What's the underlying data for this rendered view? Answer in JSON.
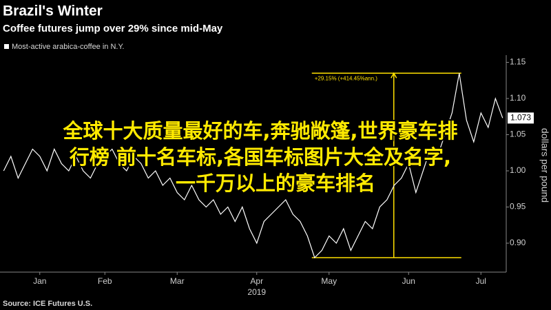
{
  "chart_data": {
    "type": "line",
    "title": "Brazil's Winter",
    "subtitle": "Coffee futures jump over 29% since mid-May",
    "source": "Source: ICE Futures U.S.",
    "y_label": "dollars per pound",
    "x_year": "2019",
    "categories": [
      null,
      null,
      null,
      null,
      null,
      "Jan",
      null,
      null,
      null,
      null,
      null,
      null,
      null,
      null,
      "Feb",
      null,
      null,
      null,
      null,
      null,
      null,
      null,
      null,
      null,
      "Mar",
      null,
      null,
      null,
      null,
      null,
      null,
      null,
      null,
      null,
      null,
      "Apr",
      null,
      null,
      null,
      null,
      null,
      null,
      null,
      null,
      null,
      "May",
      null,
      null,
      null,
      null,
      null,
      null,
      null,
      null,
      null,
      null,
      "Jun",
      null,
      null,
      null,
      null,
      null,
      null,
      null,
      null,
      null,
      "Jul",
      null,
      null,
      null
    ],
    "series": [
      {
        "name": "Most-active arabica-coffee in N.Y.",
        "color": "#ffffff",
        "values": [
          1.0,
          1.02,
          0.99,
          1.01,
          1.03,
          1.02,
          1.0,
          1.03,
          1.01,
          1.0,
          1.02,
          1.0,
          0.99,
          1.01,
          1.02,
          1.03,
          1.01,
          1.0,
          1.02,
          1.01,
          0.99,
          1.0,
          0.98,
          0.99,
          0.97,
          0.96,
          0.98,
          0.96,
          0.95,
          0.96,
          0.94,
          0.95,
          0.93,
          0.95,
          0.92,
          0.9,
          0.93,
          0.94,
          0.95,
          0.96,
          0.94,
          0.93,
          0.91,
          0.88,
          0.89,
          0.91,
          0.9,
          0.92,
          0.89,
          0.91,
          0.93,
          0.92,
          0.95,
          0.96,
          0.98,
          0.99,
          1.01,
          0.97,
          1.0,
          1.03,
          1.02,
          1.05,
          1.08,
          1.135,
          1.07,
          1.04,
          1.08,
          1.06,
          1.1,
          1.073
        ]
      }
    ],
    "ylim": [
      0.86,
      1.16
    ],
    "yticks": [
      {
        "value": 0.9,
        "label": "0.90"
      },
      {
        "value": 0.95,
        "label": "0.95"
      },
      {
        "value": 1.0,
        "label": "1.00"
      },
      {
        "value": 1.05,
        "label": "1.05"
      },
      {
        "value": 1.1,
        "label": "1.10"
      },
      {
        "value": 1.15,
        "label": "1.15"
      }
    ],
    "annotation": {
      "text": "+29.15% (+414.45%ann.)",
      "low": 0.88,
      "high": 1.135,
      "color": "#ffe000"
    },
    "overlay_caption": [
      "全球十大质量最好的车,奔驰敞篷,世界豪车排",
      "行榜 前十名车标,各国车标图片大全及名字,",
      "一千万以上的豪车排名"
    ]
  }
}
